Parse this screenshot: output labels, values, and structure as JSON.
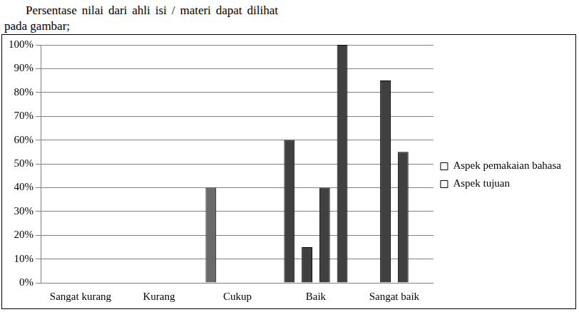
{
  "caption": "Persentase nilai dari ahli isi / materi dapat dilihat pada gambar;",
  "chart_data": {
    "type": "bar",
    "categories": [
      "Sangat kurang",
      "Kurang",
      "Cukup",
      "Baik",
      "Sangat baik"
    ],
    "series": [
      {
        "name": "Aspek pemakaian bahasa",
        "color": "#404040",
        "colors": [
          "#404040",
          "#404040",
          "#6a6a6a",
          "#404040",
          "#404040"
        ],
        "values": [
          0,
          0,
          40,
          60,
          0
        ]
      },
      {
        "name": "Aspek tujuan",
        "color": "#404040",
        "values": [
          0,
          0,
          0,
          15,
          85
        ]
      },
      {
        "name": null,
        "color": "#404040",
        "values": [
          0,
          0,
          0,
          40,
          55
        ]
      },
      {
        "name": null,
        "color": "#404040",
        "values": [
          0,
          0,
          0,
          100,
          0
        ]
      }
    ],
    "ylim": [
      0,
      100
    ],
    "yticks": [
      {
        "value": 0,
        "label": "0%"
      },
      {
        "value": 10,
        "label": "10%"
      },
      {
        "value": 20,
        "label": "20%"
      },
      {
        "value": 30,
        "label": "30%"
      },
      {
        "value": 40,
        "label": "40%"
      },
      {
        "value": 50,
        "label": "50%"
      },
      {
        "value": 60,
        "label": "60%"
      },
      {
        "value": 70,
        "label": "70%"
      },
      {
        "value": 80,
        "label": "80%"
      },
      {
        "value": 90,
        "label": "90%"
      },
      {
        "value": 100,
        "label": "100%"
      }
    ],
    "grid": true,
    "legend": "right"
  }
}
